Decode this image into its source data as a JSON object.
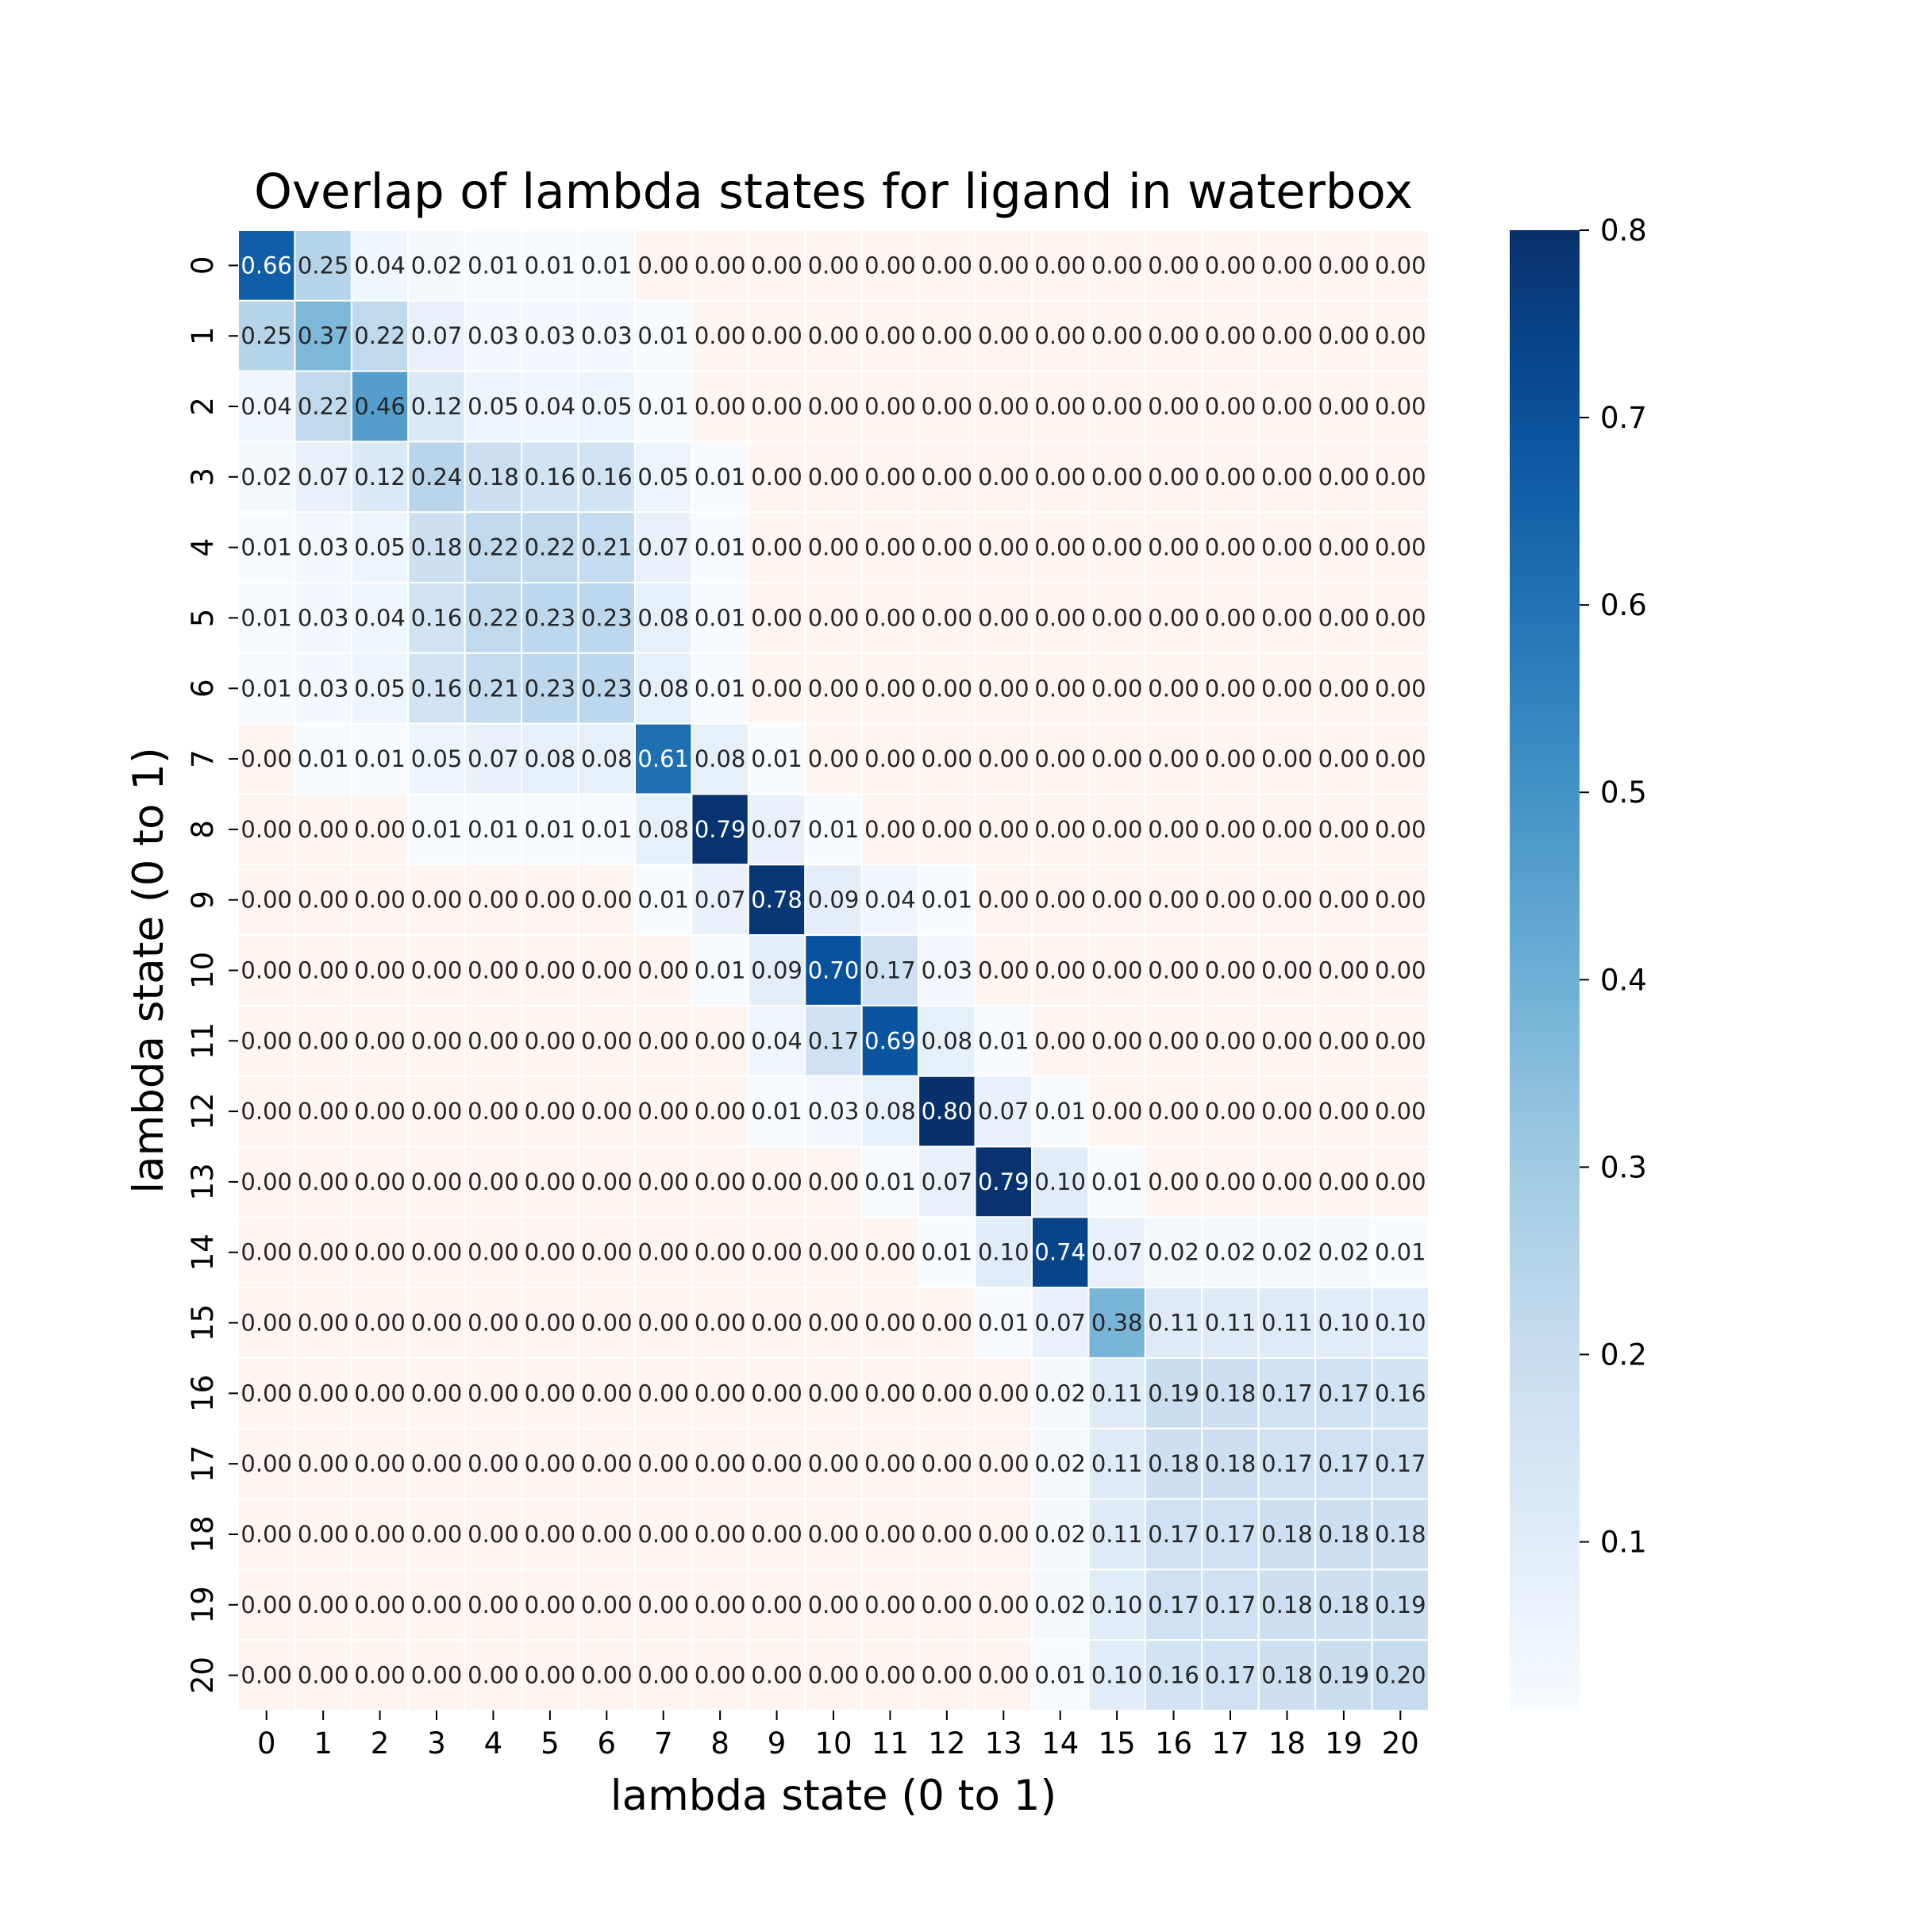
{
  "chart_data": {
    "type": "heatmap",
    "title": "Overlap of lambda states for ligand in waterbox",
    "xlabel": "lambda state (0 to 1)",
    "ylabel": "lambda state (0 to 1)",
    "x_categories": [
      "0",
      "1",
      "2",
      "3",
      "4",
      "5",
      "6",
      "7",
      "8",
      "9",
      "10",
      "11",
      "12",
      "13",
      "14",
      "15",
      "16",
      "17",
      "18",
      "19",
      "20"
    ],
    "y_categories": [
      "0",
      "1",
      "2",
      "3",
      "4",
      "5",
      "6",
      "7",
      "8",
      "9",
      "10",
      "11",
      "12",
      "13",
      "14",
      "15",
      "16",
      "17",
      "18",
      "19",
      "20"
    ],
    "values": [
      [
        0.66,
        0.25,
        0.04,
        0.02,
        0.01,
        0.01,
        0.01,
        0.0,
        0.0,
        0.0,
        0.0,
        0.0,
        0.0,
        0.0,
        0.0,
        0.0,
        0.0,
        0.0,
        0.0,
        0.0,
        0.0
      ],
      [
        0.25,
        0.37,
        0.22,
        0.07,
        0.03,
        0.03,
        0.03,
        0.01,
        0.0,
        0.0,
        0.0,
        0.0,
        0.0,
        0.0,
        0.0,
        0.0,
        0.0,
        0.0,
        0.0,
        0.0,
        0.0
      ],
      [
        0.04,
        0.22,
        0.46,
        0.12,
        0.05,
        0.04,
        0.05,
        0.01,
        0.0,
        0.0,
        0.0,
        0.0,
        0.0,
        0.0,
        0.0,
        0.0,
        0.0,
        0.0,
        0.0,
        0.0,
        0.0
      ],
      [
        0.02,
        0.07,
        0.12,
        0.24,
        0.18,
        0.16,
        0.16,
        0.05,
        0.01,
        0.0,
        0.0,
        0.0,
        0.0,
        0.0,
        0.0,
        0.0,
        0.0,
        0.0,
        0.0,
        0.0,
        0.0
      ],
      [
        0.01,
        0.03,
        0.05,
        0.18,
        0.22,
        0.22,
        0.21,
        0.07,
        0.01,
        0.0,
        0.0,
        0.0,
        0.0,
        0.0,
        0.0,
        0.0,
        0.0,
        0.0,
        0.0,
        0.0,
        0.0
      ],
      [
        0.01,
        0.03,
        0.04,
        0.16,
        0.22,
        0.23,
        0.23,
        0.08,
        0.01,
        0.0,
        0.0,
        0.0,
        0.0,
        0.0,
        0.0,
        0.0,
        0.0,
        0.0,
        0.0,
        0.0,
        0.0
      ],
      [
        0.01,
        0.03,
        0.05,
        0.16,
        0.21,
        0.23,
        0.23,
        0.08,
        0.01,
        0.0,
        0.0,
        0.0,
        0.0,
        0.0,
        0.0,
        0.0,
        0.0,
        0.0,
        0.0,
        0.0,
        0.0
      ],
      [
        0.0,
        0.01,
        0.01,
        0.05,
        0.07,
        0.08,
        0.08,
        0.61,
        0.08,
        0.01,
        0.0,
        0.0,
        0.0,
        0.0,
        0.0,
        0.0,
        0.0,
        0.0,
        0.0,
        0.0,
        0.0
      ],
      [
        0.0,
        0.0,
        0.0,
        0.01,
        0.01,
        0.01,
        0.01,
        0.08,
        0.79,
        0.07,
        0.01,
        0.0,
        0.0,
        0.0,
        0.0,
        0.0,
        0.0,
        0.0,
        0.0,
        0.0,
        0.0
      ],
      [
        0.0,
        0.0,
        0.0,
        0.0,
        0.0,
        0.0,
        0.0,
        0.01,
        0.07,
        0.78,
        0.09,
        0.04,
        0.01,
        0.0,
        0.0,
        0.0,
        0.0,
        0.0,
        0.0,
        0.0,
        0.0
      ],
      [
        0.0,
        0.0,
        0.0,
        0.0,
        0.0,
        0.0,
        0.0,
        0.0,
        0.01,
        0.09,
        0.7,
        0.17,
        0.03,
        0.0,
        0.0,
        0.0,
        0.0,
        0.0,
        0.0,
        0.0,
        0.0
      ],
      [
        0.0,
        0.0,
        0.0,
        0.0,
        0.0,
        0.0,
        0.0,
        0.0,
        0.0,
        0.04,
        0.17,
        0.69,
        0.08,
        0.01,
        0.0,
        0.0,
        0.0,
        0.0,
        0.0,
        0.0,
        0.0
      ],
      [
        0.0,
        0.0,
        0.0,
        0.0,
        0.0,
        0.0,
        0.0,
        0.0,
        0.0,
        0.01,
        0.03,
        0.08,
        0.8,
        0.07,
        0.01,
        0.0,
        0.0,
        0.0,
        0.0,
        0.0,
        0.0
      ],
      [
        0.0,
        0.0,
        0.0,
        0.0,
        0.0,
        0.0,
        0.0,
        0.0,
        0.0,
        0.0,
        0.0,
        0.01,
        0.07,
        0.79,
        0.1,
        0.01,
        0.0,
        0.0,
        0.0,
        0.0,
        0.0
      ],
      [
        0.0,
        0.0,
        0.0,
        0.0,
        0.0,
        0.0,
        0.0,
        0.0,
        0.0,
        0.0,
        0.0,
        0.0,
        0.01,
        0.1,
        0.74,
        0.07,
        0.02,
        0.02,
        0.02,
        0.02,
        0.01
      ],
      [
        0.0,
        0.0,
        0.0,
        0.0,
        0.0,
        0.0,
        0.0,
        0.0,
        0.0,
        0.0,
        0.0,
        0.0,
        0.0,
        0.01,
        0.07,
        0.38,
        0.11,
        0.11,
        0.11,
        0.1,
        0.1
      ],
      [
        0.0,
        0.0,
        0.0,
        0.0,
        0.0,
        0.0,
        0.0,
        0.0,
        0.0,
        0.0,
        0.0,
        0.0,
        0.0,
        0.0,
        0.02,
        0.11,
        0.19,
        0.18,
        0.17,
        0.17,
        0.16
      ],
      [
        0.0,
        0.0,
        0.0,
        0.0,
        0.0,
        0.0,
        0.0,
        0.0,
        0.0,
        0.0,
        0.0,
        0.0,
        0.0,
        0.0,
        0.02,
        0.11,
        0.18,
        0.18,
        0.17,
        0.17,
        0.17
      ],
      [
        0.0,
        0.0,
        0.0,
        0.0,
        0.0,
        0.0,
        0.0,
        0.0,
        0.0,
        0.0,
        0.0,
        0.0,
        0.0,
        0.0,
        0.02,
        0.11,
        0.17,
        0.17,
        0.18,
        0.18,
        0.18
      ],
      [
        0.0,
        0.0,
        0.0,
        0.0,
        0.0,
        0.0,
        0.0,
        0.0,
        0.0,
        0.0,
        0.0,
        0.0,
        0.0,
        0.0,
        0.02,
        0.1,
        0.17,
        0.17,
        0.18,
        0.18,
        0.19
      ],
      [
        0.0,
        0.0,
        0.0,
        0.0,
        0.0,
        0.0,
        0.0,
        0.0,
        0.0,
        0.0,
        0.0,
        0.0,
        0.0,
        0.0,
        0.01,
        0.1,
        0.16,
        0.17,
        0.18,
        0.19,
        0.2
      ]
    ],
    "color_range": [
      0.01,
      0.8
    ],
    "colorbar_ticks": [
      0.1,
      0.2,
      0.3,
      0.4,
      0.5,
      0.6,
      0.7,
      0.8
    ],
    "low_overlap_color": "#fff5f0",
    "colormap": "Blues",
    "grid": false,
    "legend": "none"
  }
}
